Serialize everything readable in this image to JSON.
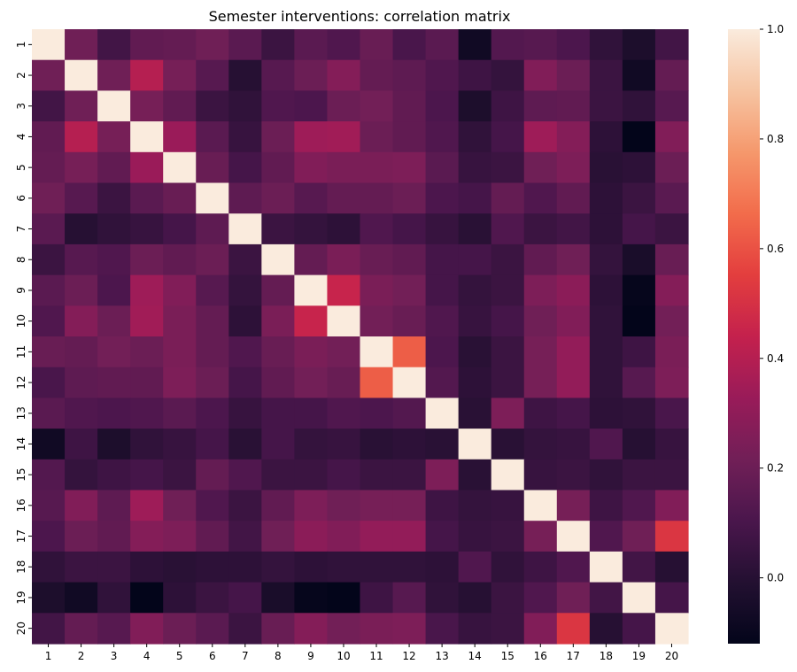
{
  "chart_data": {
    "type": "heatmap",
    "title": "Semester interventions: correlation matrix",
    "xlabel": "",
    "ylabel": "",
    "x_categories": [
      "1",
      "2",
      "3",
      "4",
      "5",
      "6",
      "7",
      "8",
      "9",
      "10",
      "11",
      "12",
      "13",
      "14",
      "15",
      "16",
      "17",
      "18",
      "19",
      "20"
    ],
    "y_categories": [
      "1",
      "2",
      "3",
      "4",
      "5",
      "6",
      "7",
      "8",
      "9",
      "10",
      "11",
      "12",
      "13",
      "14",
      "15",
      "16",
      "17",
      "18",
      "19",
      "20"
    ],
    "matrix": [
      [
        1.0,
        0.21,
        0.08,
        0.17,
        0.18,
        0.21,
        0.15,
        0.06,
        0.15,
        0.12,
        0.19,
        0.1,
        0.15,
        -0.07,
        0.13,
        0.14,
        0.11,
        0.03,
        -0.03,
        0.08
      ],
      [
        0.21,
        1.0,
        0.21,
        0.4,
        0.23,
        0.14,
        0.0,
        0.14,
        0.2,
        0.27,
        0.18,
        0.16,
        0.12,
        0.07,
        0.04,
        0.26,
        0.2,
        0.06,
        -0.07,
        0.18
      ],
      [
        0.08,
        0.21,
        1.0,
        0.23,
        0.17,
        0.06,
        0.03,
        0.12,
        0.11,
        0.2,
        0.22,
        0.17,
        0.11,
        -0.03,
        0.07,
        0.16,
        0.17,
        0.06,
        0.03,
        0.14
      ],
      [
        0.17,
        0.4,
        0.23,
        1.0,
        0.33,
        0.15,
        0.05,
        0.2,
        0.34,
        0.35,
        0.2,
        0.17,
        0.12,
        0.03,
        0.09,
        0.34,
        0.27,
        0.02,
        -0.12,
        0.26
      ],
      [
        0.18,
        0.23,
        0.17,
        0.33,
        1.0,
        0.19,
        0.09,
        0.17,
        0.26,
        0.24,
        0.24,
        0.25,
        0.15,
        0.05,
        0.06,
        0.21,
        0.25,
        0.01,
        0.02,
        0.2
      ],
      [
        0.21,
        0.14,
        0.06,
        0.15,
        0.19,
        1.0,
        0.16,
        0.2,
        0.14,
        0.18,
        0.18,
        0.2,
        0.11,
        0.09,
        0.18,
        0.12,
        0.17,
        0.02,
        0.06,
        0.15
      ],
      [
        0.15,
        0.0,
        0.03,
        0.05,
        0.09,
        0.16,
        1.0,
        0.06,
        0.04,
        0.02,
        0.12,
        0.09,
        0.05,
        0.01,
        0.12,
        0.06,
        0.08,
        0.02,
        0.09,
        0.06
      ],
      [
        0.06,
        0.14,
        0.12,
        0.2,
        0.17,
        0.2,
        0.06,
        1.0,
        0.18,
        0.24,
        0.19,
        0.17,
        0.09,
        0.09,
        0.06,
        0.17,
        0.21,
        0.04,
        -0.04,
        0.19
      ],
      [
        0.15,
        0.2,
        0.11,
        0.34,
        0.26,
        0.14,
        0.04,
        0.18,
        1.0,
        0.45,
        0.24,
        0.22,
        0.09,
        0.04,
        0.06,
        0.25,
        0.29,
        0.02,
        -0.11,
        0.27
      ],
      [
        0.12,
        0.27,
        0.2,
        0.35,
        0.24,
        0.18,
        0.02,
        0.24,
        0.45,
        1.0,
        0.22,
        0.19,
        0.12,
        0.05,
        0.09,
        0.21,
        0.26,
        0.03,
        -0.12,
        0.22
      ],
      [
        0.19,
        0.18,
        0.22,
        0.2,
        0.24,
        0.18,
        0.12,
        0.19,
        0.24,
        0.22,
        1.0,
        0.63,
        0.11,
        0.01,
        0.06,
        0.23,
        0.31,
        0.03,
        0.07,
        0.24
      ],
      [
        0.1,
        0.16,
        0.17,
        0.17,
        0.25,
        0.2,
        0.09,
        0.17,
        0.22,
        0.19,
        0.63,
        1.0,
        0.13,
        0.02,
        0.06,
        0.23,
        0.31,
        0.03,
        0.14,
        0.25
      ],
      [
        0.15,
        0.12,
        0.11,
        0.12,
        0.15,
        0.11,
        0.05,
        0.09,
        0.09,
        0.12,
        0.11,
        0.13,
        1.0,
        0.01,
        0.25,
        0.07,
        0.09,
        0.02,
        0.03,
        0.1
      ],
      [
        -0.07,
        0.07,
        -0.03,
        0.03,
        0.05,
        0.09,
        0.01,
        0.09,
        0.04,
        0.05,
        0.01,
        0.02,
        0.01,
        1.0,
        0.01,
        0.04,
        0.05,
        0.12,
        0.0,
        0.05
      ],
      [
        0.13,
        0.04,
        0.07,
        0.09,
        0.06,
        0.18,
        0.12,
        0.06,
        0.06,
        0.09,
        0.06,
        0.06,
        0.25,
        0.01,
        1.0,
        0.05,
        0.06,
        0.03,
        0.06,
        0.06
      ],
      [
        0.14,
        0.26,
        0.16,
        0.34,
        0.21,
        0.12,
        0.06,
        0.17,
        0.25,
        0.21,
        0.23,
        0.23,
        0.07,
        0.04,
        0.05,
        1.0,
        0.23,
        0.07,
        0.12,
        0.26
      ],
      [
        0.11,
        0.2,
        0.17,
        0.27,
        0.25,
        0.17,
        0.08,
        0.21,
        0.29,
        0.26,
        0.31,
        0.31,
        0.09,
        0.05,
        0.06,
        0.23,
        1.0,
        0.12,
        0.21,
        0.52
      ],
      [
        0.03,
        0.06,
        0.06,
        0.02,
        0.01,
        0.02,
        0.02,
        0.04,
        0.02,
        0.03,
        0.03,
        0.03,
        0.02,
        0.12,
        0.03,
        0.07,
        0.12,
        1.0,
        0.08,
        0.0
      ],
      [
        -0.03,
        -0.07,
        0.03,
        -0.12,
        0.02,
        0.06,
        0.09,
        -0.04,
        -0.11,
        -0.12,
        0.07,
        0.14,
        0.03,
        0.0,
        0.06,
        0.12,
        0.21,
        0.08,
        1.0,
        0.09
      ],
      [
        0.08,
        0.18,
        0.14,
        0.26,
        0.2,
        0.15,
        0.06,
        0.19,
        0.27,
        0.22,
        0.24,
        0.25,
        0.1,
        0.05,
        0.06,
        0.26,
        0.52,
        0.0,
        0.09,
        1.0
      ]
    ],
    "vmin": -0.12,
    "vmax": 1.0,
    "colormap": "rocket",
    "colorbar_ticks": [
      0.0,
      0.2,
      0.4,
      0.6,
      0.8,
      1.0
    ],
    "colorbar_tick_labels": [
      "0.0",
      "0.2",
      "0.4",
      "0.6",
      "0.8",
      "1.0"
    ],
    "grid": false
  }
}
